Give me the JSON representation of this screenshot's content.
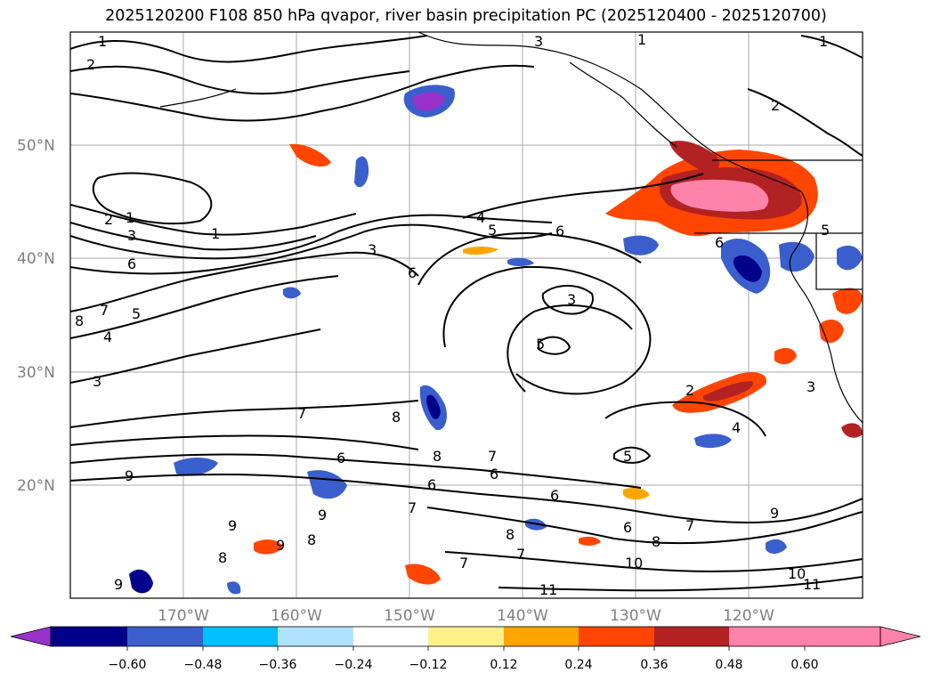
{
  "title": "2025120200 F108 850 hPa qvapor, river basin precipitation PC (2025120400 - 2025120700)",
  "latitude_labels": [
    "50°N",
    "40°N",
    "30°N",
    "20°N"
  ],
  "longitude_labels": [
    "170°W",
    "160°W",
    "150°W",
    "140°W",
    "130°W",
    "120°W"
  ],
  "colorbar": {
    "colors": [
      "#9932cc",
      "#00008b",
      "#3a5fcd",
      "#00bfff",
      "#b0e2ff",
      "#ffffff",
      "#fff08a",
      "#ffa500",
      "#ff4500",
      "#b22222",
      "#ff82ab"
    ],
    "tick_labels": [
      "−0.60",
      "−0.48",
      "−0.36",
      "−0.24",
      "−0.12",
      "0.12",
      "0.24",
      "0.36",
      "0.48",
      "0.60"
    ]
  },
  "contour_labels": [
    "1",
    "2",
    "3",
    "4",
    "5",
    "6",
    "7",
    "8",
    "9",
    "10",
    "11"
  ]
}
